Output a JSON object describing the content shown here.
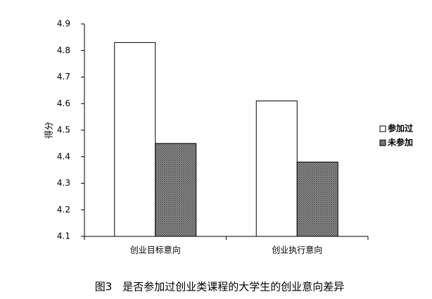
{
  "chart_data": {
    "type": "bar",
    "caption": "图3　是否参加过创业类课程的大学生的创业意向差异",
    "y_label": "得分",
    "categories": [
      "创业目标意向",
      "创业执行意向"
    ],
    "series": [
      {
        "name": "参加过",
        "color": "#ffffff",
        "values": [
          4.83,
          4.61
        ]
      },
      {
        "name": "未参加",
        "color": "#4d4d4d",
        "pattern": "crosshatch",
        "values": [
          4.45,
          4.38
        ]
      }
    ],
    "ylim": [
      4.1,
      4.9
    ],
    "yticks": [
      4.1,
      4.2,
      4.3,
      4.4,
      4.5,
      4.6,
      4.7,
      4.8,
      4.9
    ],
    "legend": "right"
  }
}
